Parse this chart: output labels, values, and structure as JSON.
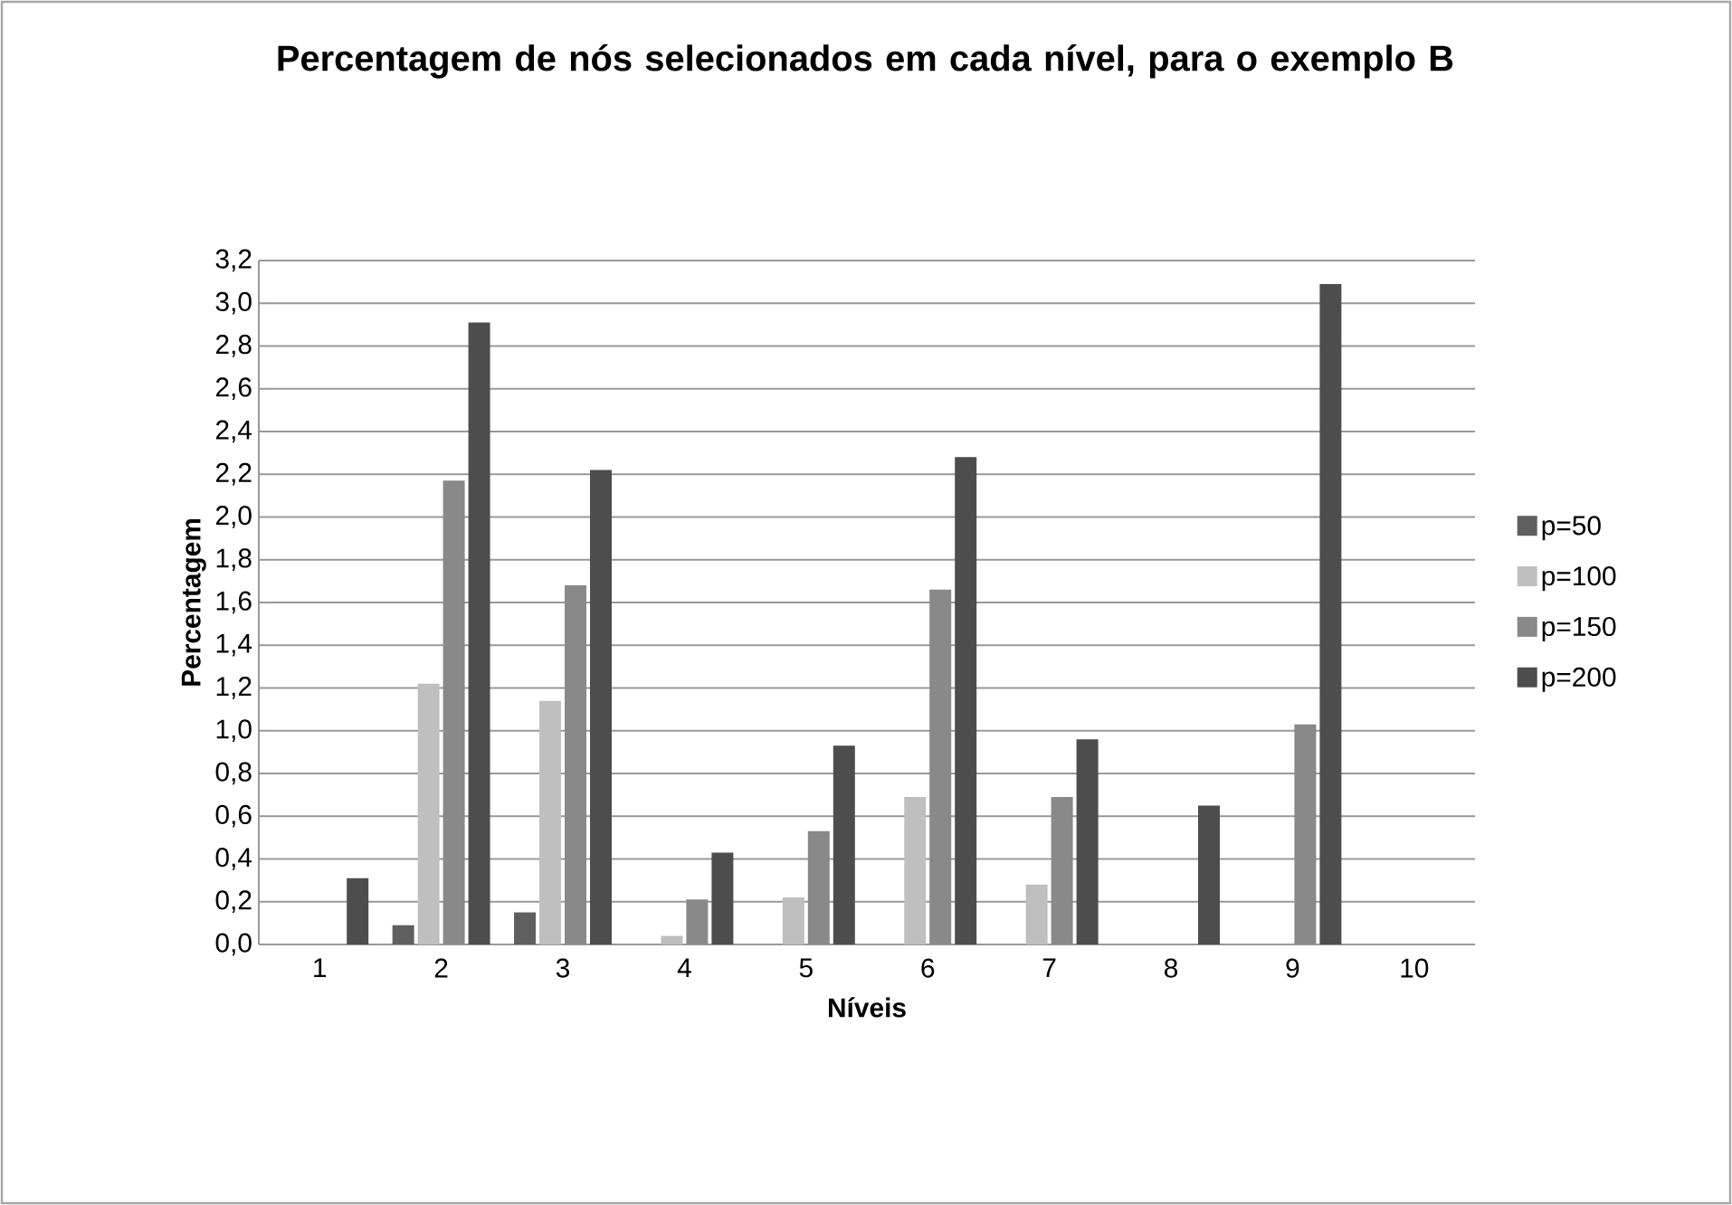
{
  "chart_data": {
    "type": "bar",
    "title": "Percentagem de nós selecionados em cada nível, para o exemplo B",
    "xlabel": "Níveis",
    "ylabel": "Percentagem",
    "categories": [
      "1",
      "2",
      "3",
      "4",
      "5",
      "6",
      "7",
      "8",
      "9",
      "10"
    ],
    "series": [
      {
        "name": "p=50",
        "color": "#5f5f5f",
        "values": [
          0,
          0.09,
          0.15,
          0,
          0,
          0,
          0,
          0,
          0,
          0
        ]
      },
      {
        "name": "p=100",
        "color": "#bfbfbf",
        "values": [
          0,
          1.22,
          1.14,
          0.04,
          0.22,
          0.69,
          0.28,
          0,
          0,
          0
        ]
      },
      {
        "name": "p=150",
        "color": "#898989",
        "values": [
          0,
          2.17,
          1.68,
          0.21,
          0.53,
          1.66,
          0.69,
          0,
          1.03,
          0
        ]
      },
      {
        "name": "p=200",
        "color": "#4d4d4d",
        "values": [
          0.31,
          2.91,
          2.22,
          0.43,
          0.93,
          2.28,
          0.96,
          0.65,
          3.09,
          0
        ]
      }
    ],
    "ylim": [
      0,
      3.2
    ],
    "yticks": [
      {
        "value": 0,
        "label": "0,0"
      },
      {
        "value": 0.2,
        "label": "0,2"
      },
      {
        "value": 0.4,
        "label": "0,4"
      },
      {
        "value": 0.6,
        "label": "0,6"
      },
      {
        "value": 0.8,
        "label": "0,8"
      },
      {
        "value": 1.0,
        "label": "1,0"
      },
      {
        "value": 1.2,
        "label": "1,2"
      },
      {
        "value": 1.4,
        "label": "1,4"
      },
      {
        "value": 1.6,
        "label": "1,6"
      },
      {
        "value": 1.8,
        "label": "1,8"
      },
      {
        "value": 2.0,
        "label": "2,0"
      },
      {
        "value": 2.2,
        "label": "2,2"
      },
      {
        "value": 2.4,
        "label": "2,4"
      },
      {
        "value": 2.6,
        "label": "2,6"
      },
      {
        "value": 2.8,
        "label": "2,8"
      },
      {
        "value": 3.0,
        "label": "3,0"
      },
      {
        "value": 3.2,
        "label": "3,2"
      }
    ],
    "grid": "y",
    "legend": "right"
  }
}
